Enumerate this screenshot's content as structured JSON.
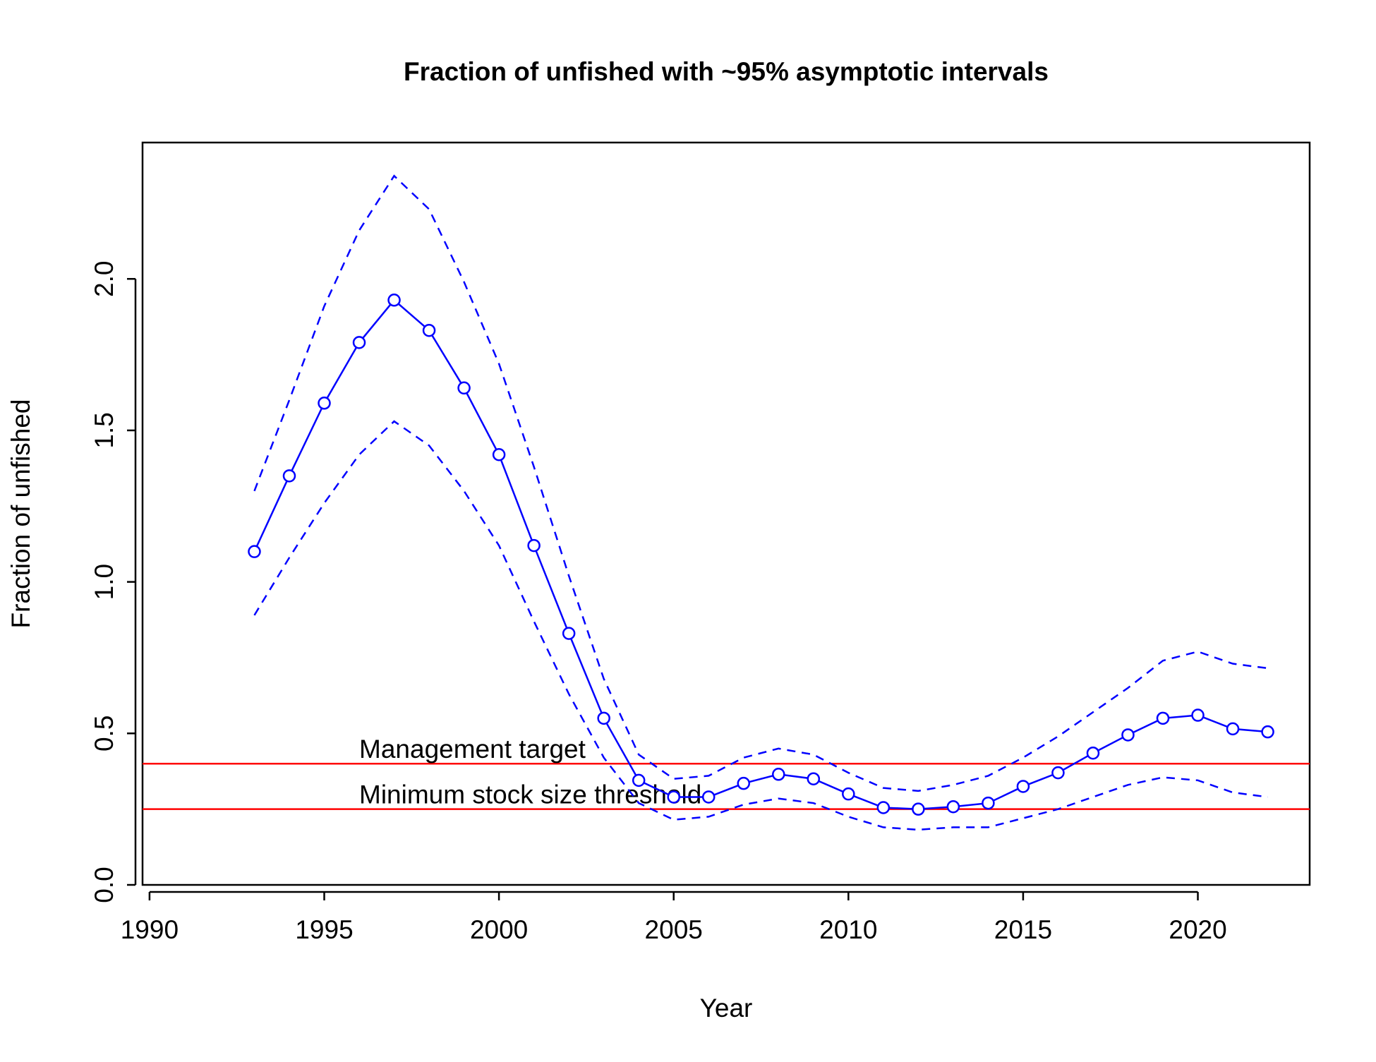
{
  "chart_data": {
    "type": "line",
    "title": "Fraction of unfished with ~95% asymptotic intervals",
    "xlabel": "Year",
    "ylabel": "Fraction of unfished",
    "xlim": [
      1989.8,
      2023.2
    ],
    "ylim": [
      0,
      2.45
    ],
    "xticks": [
      1990,
      1995,
      2000,
      2005,
      2010,
      2015,
      2020
    ],
    "xtick_labels": [
      "1990",
      "1995",
      "2000",
      "2005",
      "2010",
      "2015",
      "2020"
    ],
    "yticks": [
      0,
      0.5,
      1,
      1.5,
      2
    ],
    "ytick_labels": [
      "0.0",
      "0.5",
      "1.0",
      "1.5",
      "2.0"
    ],
    "grid": false,
    "x": [
      1993,
      1994,
      1995,
      1996,
      1997,
      1998,
      1999,
      2000,
      2001,
      2002,
      2003,
      2004,
      2005,
      2006,
      2007,
      2008,
      2009,
      2010,
      2011,
      2012,
      2013,
      2014,
      2015,
      2016,
      2017,
      2018,
      2019,
      2020,
      2021,
      2022
    ],
    "series": [
      {
        "role": "estimate",
        "style": "solid-with-circles",
        "color": "#0000ff",
        "values": [
          1.1,
          1.35,
          1.59,
          1.79,
          1.93,
          1.83,
          1.64,
          1.42,
          1.12,
          0.83,
          0.55,
          0.345,
          0.29,
          0.29,
          0.335,
          0.365,
          0.35,
          0.3,
          0.255,
          0.25,
          0.258,
          0.27,
          0.325,
          0.37,
          0.435,
          0.495,
          0.55,
          0.56,
          0.515,
          0.505
        ]
      },
      {
        "role": "upper-interval",
        "style": "dashed",
        "color": "#0000ff",
        "values": [
          1.3,
          1.6,
          1.91,
          2.16,
          2.34,
          2.23,
          1.99,
          1.72,
          1.38,
          1.02,
          0.68,
          0.43,
          0.35,
          0.36,
          0.42,
          0.45,
          0.43,
          0.37,
          0.32,
          0.31,
          0.33,
          0.36,
          0.42,
          0.49,
          0.57,
          0.65,
          0.74,
          0.77,
          0.73,
          0.715
        ]
      },
      {
        "role": "lower-interval",
        "style": "dashed",
        "color": "#0000ff",
        "values": [
          0.89,
          1.08,
          1.26,
          1.42,
          1.53,
          1.45,
          1.3,
          1.12,
          0.87,
          0.63,
          0.42,
          0.27,
          0.215,
          0.225,
          0.265,
          0.285,
          0.27,
          0.225,
          0.19,
          0.182,
          0.19,
          0.19,
          0.22,
          0.25,
          0.29,
          0.33,
          0.355,
          0.345,
          0.305,
          0.29
        ]
      }
    ],
    "reference_lines": [
      {
        "label": "Management target",
        "y": 0.4,
        "color": "#ff0000",
        "label_x": 1996
      },
      {
        "label": "Minimum stock size threshold",
        "y": 0.25,
        "color": "#ff0000",
        "label_x": 1996
      }
    ]
  }
}
